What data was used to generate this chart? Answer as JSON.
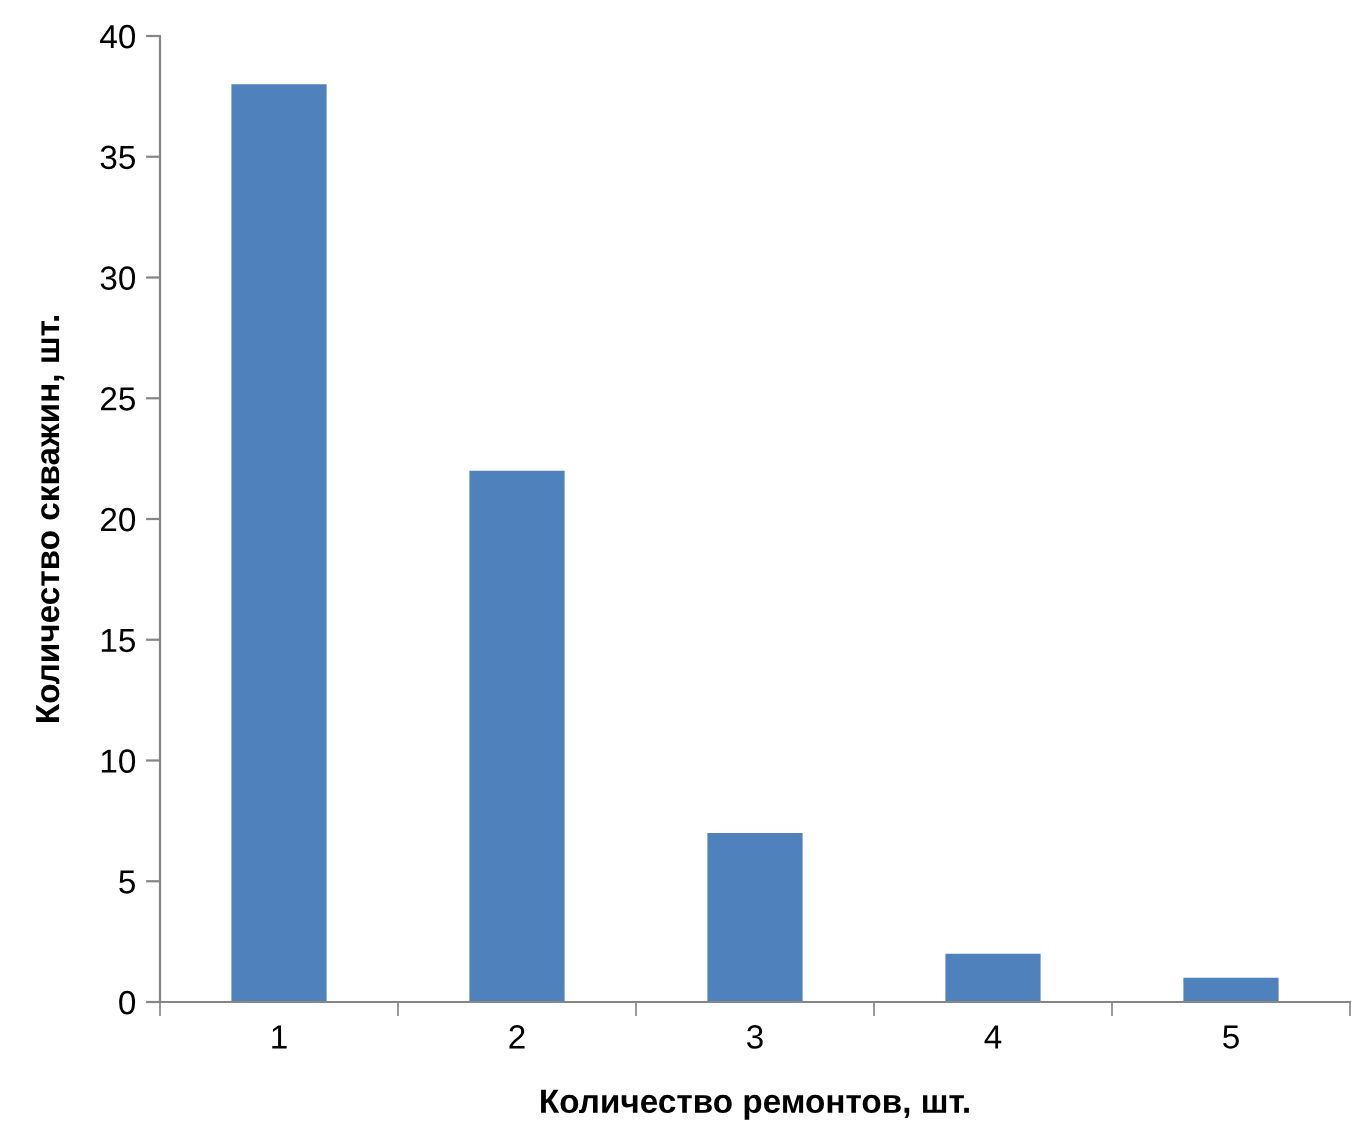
{
  "chart_data": {
    "type": "bar",
    "categories": [
      "1",
      "2",
      "3",
      "4",
      "5"
    ],
    "values": [
      38,
      22,
      7,
      2,
      1
    ],
    "color": "#4f81bd",
    "xlabel": "Количество ремонтов, шт.",
    "ylabel": "Количество скважин, шт.",
    "ylim": [
      0,
      40
    ],
    "yticks": [
      0,
      5,
      10,
      15,
      20,
      25,
      30,
      35,
      40
    ],
    "grid": false
  }
}
